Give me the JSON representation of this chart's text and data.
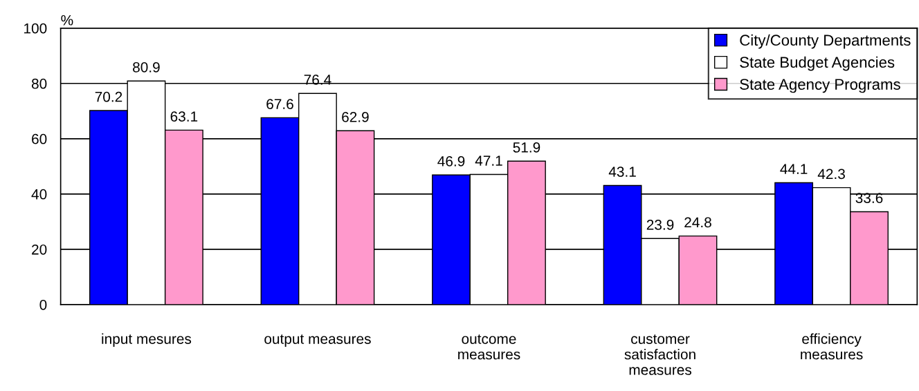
{
  "chart_data": {
    "type": "bar",
    "ylabel": "%",
    "categories": [
      "input mesures",
      "output measures",
      "outcome\nmeasures",
      "customer\nsatisfaction\nmeasures",
      "efficiency\nmeasures"
    ],
    "series": [
      {
        "name": "City/County Departments",
        "color": "#0000ff",
        "values": [
          70.2,
          67.6,
          46.9,
          43.1,
          44.1
        ]
      },
      {
        "name": "State Budget Agencies",
        "color": "#ffffff",
        "values": [
          80.9,
          76.4,
          47.1,
          23.9,
          42.3
        ]
      },
      {
        "name": "State Agency Programs",
        "color": "#ff99cc",
        "values": [
          63.1,
          62.9,
          51.9,
          24.8,
          33.6
        ]
      }
    ],
    "ylim": [
      0,
      100
    ],
    "yticks": [
      0,
      20,
      40,
      60,
      80,
      100
    ],
    "grid": "y",
    "legend": "top right",
    "data_labels": true
  }
}
